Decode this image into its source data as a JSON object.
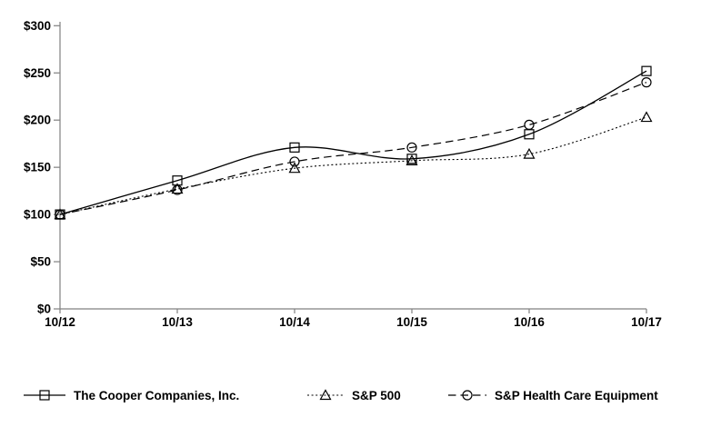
{
  "chart_data": {
    "type": "line",
    "title": "",
    "xlabel": "",
    "ylabel": "",
    "x_categories": [
      "10/12",
      "10/13",
      "10/14",
      "10/15",
      "10/16",
      "10/17"
    ],
    "series": [
      {
        "name": "The Cooper Companies, Inc.",
        "marker": "square",
        "line_style": "solid",
        "values": [
          100,
          136,
          171,
          159,
          185,
          252
        ]
      },
      {
        "name": "S&P 500",
        "marker": "triangle",
        "line_style": "dotted",
        "values": [
          100,
          127,
          149,
          157,
          164,
          203
        ]
      },
      {
        "name": "S&P Health Care Equipment",
        "marker": "circle",
        "line_style": "dashed",
        "values": [
          100,
          126,
          156,
          171,
          195,
          240
        ]
      }
    ],
    "ylim": [
      0,
      300
    ],
    "y_tick_step": 50,
    "y_tick_labels": [
      "$0",
      "$50",
      "$100",
      "$150",
      "$200",
      "$250",
      "$300"
    ],
    "currency_prefix": "$",
    "grid": false,
    "legend_position": "bottom",
    "colors": {
      "line": "#000000",
      "marker_stroke": "#000000",
      "marker_fill": "none",
      "axis": "#808080",
      "text": "#000000",
      "background": "#ffffff"
    }
  }
}
